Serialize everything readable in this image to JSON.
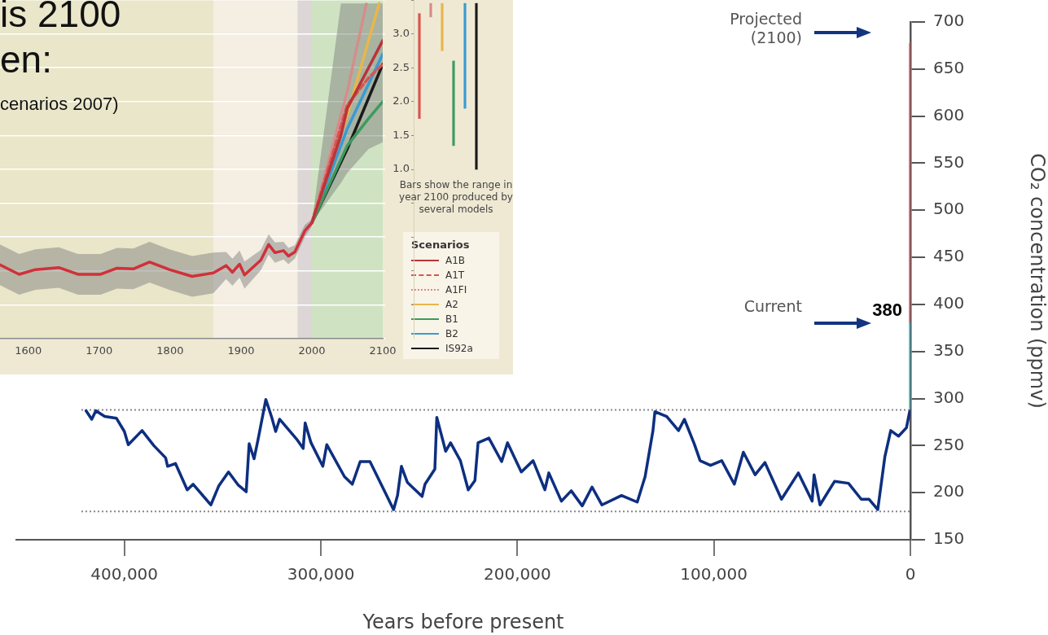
{
  "chart_data": [
    {
      "type": "line",
      "xlim": [
        1560,
        2100
      ],
      "xticks": [
        1600,
        1700,
        1800,
        1900,
        2000,
        2100
      ],
      "ylim": [
        -1.5,
        3.5
      ],
      "yticks": [
        {
          "value": -1.5,
          "label": null
        },
        {
          "value": -1,
          "label": null
        },
        {
          "value": -0.5,
          "label": null
        },
        {
          "value": 0,
          "label": null
        },
        {
          "value": 0.5,
          "label": null
        },
        {
          "value": 1,
          "label": null
        },
        {
          "value": 1.5,
          "label": null
        },
        {
          "value": 2,
          "label": null
        },
        {
          "value": 2.5,
          "label": null
        },
        {
          "value": 3,
          "label": null
        },
        {
          "value": 3.5,
          "label": null
        }
      ],
      "grid": "y",
      "tick_labels": "x",
      "legend": "bottom right",
      "legend_title": "Scenarios",
      "marker": "none",
      "annotations": [
        "is 2100",
        "en:",
        "cenarios 2007)"
      ],
      "bands": [
        {
          "axis": "x",
          "from": 1560,
          "to": 1861,
          "color": "#e9e6c9"
        },
        {
          "axis": "x",
          "from": 1861,
          "to": 1980,
          "color": "#f4eee3"
        },
        {
          "axis": "x",
          "from": 1980,
          "to": 2000,
          "color": "#dcd6d6"
        },
        {
          "axis": "x",
          "from": 2000,
          "to": 2100,
          "color": "#cfe3c3"
        }
      ],
      "series": [
        {
          "color": "#d0313a",
          "x": [
            1560,
            1587,
            1610,
            1643,
            1670,
            1702,
            1725,
            1748,
            1771,
            1799,
            1831,
            1861,
            1879,
            1888,
            1898,
            1905,
            1928,
            1939,
            1948,
            1960,
            1967,
            1976,
            1990,
            2000
          ],
          "values": [
            -0.41,
            -0.55,
            -0.48,
            -0.45,
            -0.55,
            -0.55,
            -0.46,
            -0.47,
            -0.37,
            -0.48,
            -0.58,
            -0.53,
            -0.42,
            -0.52,
            -0.4,
            -0.56,
            -0.34,
            -0.11,
            -0.23,
            -0.2,
            -0.28,
            -0.22,
            0.09,
            0.21
          ],
          "lower": [
            -0.71,
            -0.85,
            -0.78,
            -0.75,
            -0.85,
            -0.85,
            -0.76,
            -0.77,
            -0.67,
            -0.78,
            -0.88,
            -0.83,
            -0.62,
            -0.72,
            -0.6,
            -0.76,
            -0.49,
            -0.26,
            -0.38,
            -0.33,
            -0.4,
            -0.32,
            0.0,
            0.16
          ],
          "upper": [
            -0.11,
            -0.25,
            -0.18,
            -0.15,
            -0.25,
            -0.25,
            -0.16,
            -0.17,
            -0.07,
            -0.18,
            -0.28,
            -0.23,
            -0.22,
            -0.32,
            -0.2,
            -0.36,
            -0.19,
            0.04,
            -0.08,
            -0.07,
            -0.16,
            -0.12,
            0.18,
            0.26
          ]
        },
        {
          "name": "A1B",
          "color": "#b8343a",
          "x": [
            2000,
            2041,
            2050,
            2080,
            2100
          ],
          "values": [
            0.21,
            1.5,
            1.9,
            2.5,
            2.9
          ],
          "lower": [
            0.21,
            0.8,
            0.95,
            1.3,
            1.4
          ],
          "upper": [
            0.21,
            3.45,
            3.45,
            3.45,
            3.45
          ]
        },
        {
          "name": "A1T",
          "color": "#d9544f",
          "line_style": "dashed",
          "x": [
            2000,
            2050,
            2080,
            2100
          ],
          "values": [
            0.21,
            1.95,
            2.35,
            2.55
          ]
        },
        {
          "name": "A1FI",
          "color": "#d98a8a",
          "line_style": "dotted",
          "x": [
            2000,
            2050,
            2077
          ],
          "values": [
            0.21,
            2.15,
            3.45
          ]
        },
        {
          "name": "A2",
          "color": "#e9b64a",
          "x": [
            2000,
            2050,
            2095
          ],
          "values": [
            0.21,
            1.8,
            3.45
          ]
        },
        {
          "name": "B1",
          "color": "#3e9a5e",
          "x": [
            2000,
            2050,
            2080,
            2100
          ],
          "values": [
            0.21,
            1.35,
            1.75,
            2.0
          ]
        },
        {
          "name": "B2",
          "color": "#3a9bd0",
          "x": [
            2000,
            2050,
            2100
          ],
          "values": [
            0.21,
            1.6,
            2.7
          ]
        },
        {
          "name": "IS92a",
          "color": "#1a1a1a",
          "x": [
            2000,
            2050,
            2100
          ],
          "values": [
            0.21,
            1.3,
            2.55
          ]
        }
      ]
    },
    {
      "type": "bar",
      "categories": [
        null,
        null,
        null,
        null,
        null,
        null
      ],
      "ylim": [
        -1.5,
        3.5
      ],
      "yticks": [
        {
          "value": -1.5,
          "label": null
        },
        {
          "value": -1,
          "label": null
        },
        {
          "value": -0.5,
          "label": null
        },
        {
          "value": 0,
          "label": null
        },
        {
          "value": 0.5,
          "label": null
        },
        {
          "value": 1,
          "label": "1.0"
        },
        {
          "value": 1.5,
          "label": "1.5"
        },
        {
          "value": 2,
          "label": "2.0"
        },
        {
          "value": 2.5,
          "label": "2.5"
        },
        {
          "value": 3,
          "label": "3.0"
        },
        {
          "value": 3.5,
          "label": null
        }
      ],
      "tick_labels": "y",
      "base": [
        1.75,
        3.25,
        2.75,
        1.35,
        1.9,
        1.0
      ],
      "values": [
        1.55,
        0.2,
        0.7,
        1.25,
        1.55,
        2.45
      ],
      "colors": [
        "#d9544f",
        "#d98a8a",
        "#e9b64a",
        "#3e9a5e",
        "#3a9bd0",
        "#1a1a1a"
      ],
      "annotations": [
        "Bars show the range in year 2100 produced by several models"
      ]
    },
    {
      "type": "line",
      "xlabel": "Years before present",
      "ylabel": "CO₂ concentration (ppmv)",
      "xlim": [
        455000,
        0
      ],
      "xticks": [
        {
          "value": 400000,
          "label": "400,000"
        },
        {
          "value": 300000,
          "label": "300,000"
        },
        {
          "value": 200000,
          "label": "200,000"
        },
        {
          "value": 100000,
          "label": "100,000"
        },
        0
      ],
      "ylim": [
        150,
        700
      ],
      "yticks": [
        150,
        200,
        250,
        300,
        350,
        400,
        450,
        500,
        550,
        600,
        650,
        700
      ],
      "grid": false,
      "legend": false,
      "marker": "none",
      "ref_lines": [
        {
          "axis": "y",
          "value": 288,
          "color": "#888888",
          "line_style": "dotted"
        },
        {
          "axis": "y",
          "value": 180,
          "color": "#888888",
          "line_style": "dotted"
        }
      ],
      "annotations": [
        "Projected (2100)",
        "Current"
      ],
      "series": [
        {
          "color": "#0d2f80",
          "x": [
            419500,
            416600,
            414500,
            410000,
            404000,
            400000,
            398000,
            391000,
            385000,
            379000,
            378000,
            374000,
            368000,
            365000,
            356000,
            352000,
            347000,
            342000,
            338000,
            336500,
            334000,
            332000,
            328000,
            325000,
            323000,
            321000,
            312000,
            309000,
            308000,
            305000,
            299000,
            297000,
            288000,
            284000,
            280000,
            275000,
            267000,
            263000,
            261000,
            259000,
            256000,
            248500,
            247000,
            242000,
            241000,
            236500,
            234000,
            229000,
            225000,
            221600,
            220000,
            214500,
            208000,
            205000,
            198000,
            192000,
            186000,
            184000,
            177600,
            172600,
            167000,
            162000,
            157000,
            147000,
            139000,
            135000,
            131000,
            130000,
            124000,
            118000,
            115000,
            110000,
            107000,
            101700,
            96000,
            89600,
            85000,
            79000,
            74000,
            65600,
            57000,
            50000,
            49000,
            46000,
            38600,
            31500,
            25000,
            21000,
            16600,
            13000,
            10000,
            6000,
            2000,
            400
          ],
          "values": [
            287,
            278,
            287,
            281,
            279,
            265,
            251,
            266,
            250,
            237,
            228,
            231,
            203,
            209,
            187,
            207,
            222,
            208,
            201,
            252,
            236,
            256,
            299,
            280,
            265,
            278,
            256,
            247,
            274,
            253,
            228,
            251,
            217,
            209,
            233,
            233,
            199,
            182,
            197,
            228,
            211,
            196,
            209,
            225,
            280,
            244,
            253,
            234,
            203,
            213,
            253,
            258,
            233,
            253,
            222,
            234,
            203,
            221,
            191,
            202,
            186,
            206,
            187,
            197,
            190,
            217,
            266,
            286,
            281,
            266,
            278,
            252,
            234,
            229,
            234,
            209,
            243,
            219,
            232,
            193,
            221,
            191,
            219,
            187,
            212,
            210,
            193,
            193,
            182,
            238,
            266,
            260,
            269,
            286
          ]
        },
        {
          "color": "#3ab6c6",
          "x": [
            0,
            0
          ],
          "values": [
            290,
            380
          ],
          "value_labels": [
            null,
            "380"
          ]
        },
        {
          "color": "#d9585f",
          "x": [
            0,
            0
          ],
          "values": [
            380,
            677
          ]
        }
      ]
    }
  ]
}
